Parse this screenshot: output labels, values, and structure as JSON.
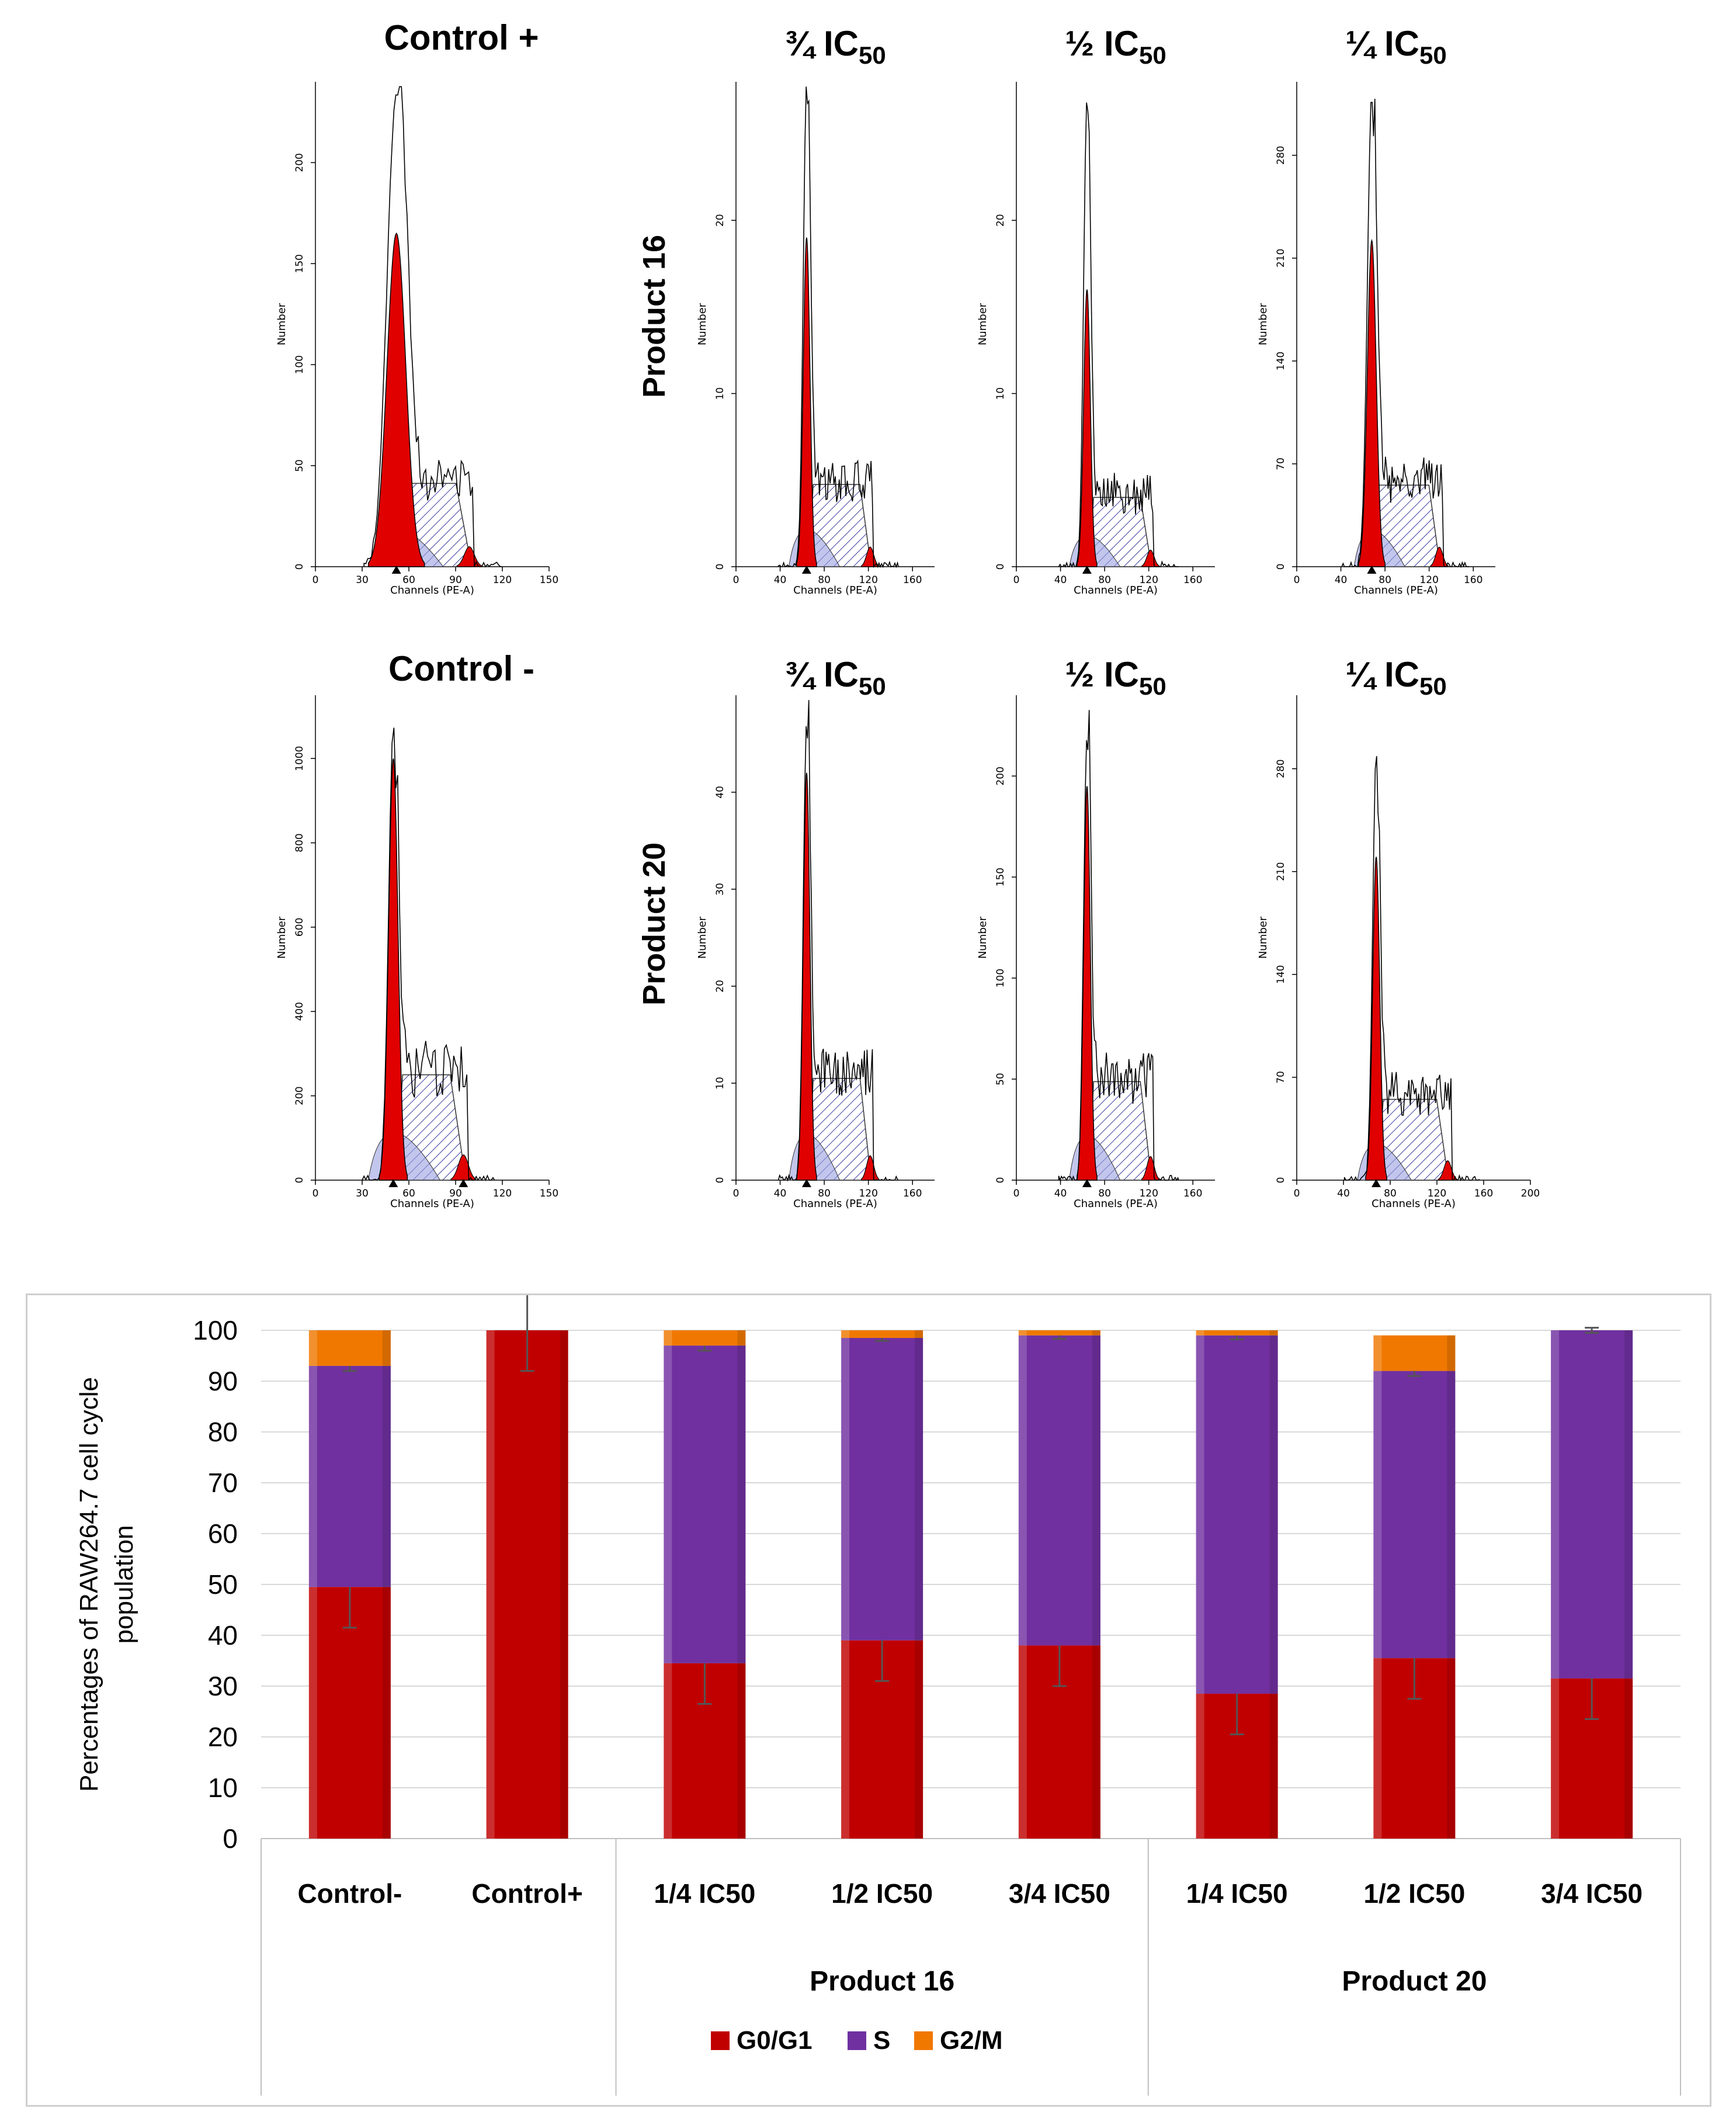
{
  "histograms": {
    "row1": {
      "control_title": "Control +",
      "titles": [
        "¾ IC",
        "½  IC",
        "¼  IC"
      ],
      "title_sub": "50",
      "product_label": "Product 16"
    },
    "row2": {
      "control_title": "Control -",
      "titles": [
        "¾ IC",
        "½  IC",
        "¼  IC"
      ],
      "title_sub": "50",
      "product_label": "Product 20"
    },
    "panels": [
      {
        "id": "c-plus",
        "yticks": [
          "0",
          "50",
          "100",
          "150",
          "200"
        ],
        "ymax": 240,
        "xticks": [
          "0",
          "30",
          "60",
          "90",
          "120",
          "150"
        ],
        "xmax": 150,
        "xlabel": "Channels (PE-A)",
        "ylabel": "Number",
        "g1": 52,
        "g1h": 165,
        "g1w": 6,
        "speak": 235,
        "markers": [
          52
        ]
      },
      {
        "id": "p16-34",
        "yticks": [
          "0",
          "10",
          "20"
        ],
        "ymax": 28,
        "xticks": [
          "0",
          "40",
          "80",
          "120",
          "160"
        ],
        "xmax": 180,
        "xlabel": "Channels (PE-A)",
        "ylabel": "Number",
        "g1": 64,
        "g1h": 19,
        "g1w": 3,
        "speak": 28,
        "markers": [
          64
        ]
      },
      {
        "id": "p16-12",
        "yticks": [
          "0",
          "10",
          "20"
        ],
        "ymax": 28,
        "xticks": [
          "0",
          "40",
          "80",
          "120",
          "160"
        ],
        "xmax": 180,
        "xlabel": "Channels (PE-A)",
        "ylabel": "Number",
        "g1": 64,
        "g1h": 16,
        "g1w": 3,
        "speak": 27,
        "markers": [
          64
        ]
      },
      {
        "id": "p16-14",
        "yticks": [
          "0",
          "70",
          "140",
          "210",
          "280"
        ],
        "ymax": 330,
        "xticks": [
          "0",
          "40",
          "80",
          "120",
          "160"
        ],
        "xmax": 180,
        "xlabel": "Channels (PE-A)",
        "ylabel": "Number",
        "g1": 68,
        "g1h": 222,
        "g1w": 4,
        "speak": 320,
        "markers": [
          68
        ]
      },
      {
        "id": "c-minus",
        "yticks": [
          "0",
          "200",
          "400",
          "600",
          "800",
          "1000"
        ],
        "ymax": 1150,
        "xticks": [
          "0",
          "30",
          "60",
          "90",
          "120",
          "150"
        ],
        "xmax": 150,
        "xlabel": "Channels (PE-A)",
        "ylabel": "Number",
        "g1": 50,
        "g1h": 1000,
        "g1w": 3,
        "speak": 1080,
        "markers": [
          50,
          95
        ]
      },
      {
        "id": "p20-34",
        "yticks": [
          "0",
          "10",
          "20",
          "30",
          "40"
        ],
        "ymax": 50,
        "xticks": [
          "0",
          "40",
          "80",
          "120",
          "160"
        ],
        "xmax": 180,
        "xlabel": "Channels (PE-A)",
        "ylabel": "Number",
        "g1": 64,
        "g1h": 42,
        "g1w": 3,
        "speak": 47,
        "markers": [
          64
        ]
      },
      {
        "id": "p20-12",
        "yticks": [
          "0",
          "50",
          "100",
          "150",
          "200"
        ],
        "ymax": 240,
        "xticks": [
          "0",
          "40",
          "80",
          "120",
          "160"
        ],
        "xmax": 180,
        "xlabel": "Channels (PE-A)",
        "ylabel": "Number",
        "g1": 64,
        "g1h": 195,
        "g1w": 3,
        "speak": 220,
        "markers": [
          64
        ]
      },
      {
        "id": "p20-14",
        "yticks": [
          "0",
          "70",
          "140",
          "210",
          "280"
        ],
        "ymax": 330,
        "xticks": [
          "0",
          "40",
          "80",
          "120",
          "160",
          "200"
        ],
        "xmax": 200,
        "xlabel": "Channels (PE-A)",
        "ylabel": "Number",
        "g1": 68,
        "g1h": 220,
        "g1w": 3,
        "speak": 290,
        "markers": [
          68
        ]
      }
    ]
  },
  "chart_data": {
    "type": "bar",
    "stacked": true,
    "title": "",
    "ylabel": "Percentages of RAW264.7 cell cycle population",
    "ylim": [
      0,
      100
    ],
    "yticks": [
      0,
      10,
      20,
      30,
      40,
      50,
      60,
      70,
      80,
      90,
      100
    ],
    "categories": [
      "Control-",
      "Control+",
      "1/4 IC50",
      "1/2 IC50",
      "3/4 IC50",
      "1/4 IC50",
      "1/2 IC50",
      "3/4 IC50"
    ],
    "groups": [
      {
        "label": "",
        "span": 2
      },
      {
        "label": "Product 16",
        "span": 3
      },
      {
        "label": "Product 20",
        "span": 3
      }
    ],
    "series": [
      {
        "name": "G0/G1",
        "color": "#c00000",
        "values": [
          49.5,
          100,
          34.5,
          39,
          38,
          28.5,
          35.5,
          31.5
        ],
        "errors": [
          8,
          8,
          8,
          8,
          8,
          8,
          8,
          8
        ]
      },
      {
        "name": "S",
        "color": "#7030a0",
        "values": [
          43.5,
          0,
          62.5,
          59.5,
          61,
          70.5,
          56.5,
          68.5
        ],
        "errors": [
          1,
          0,
          1,
          0.6,
          0.7,
          0.8,
          1,
          0.5
        ]
      },
      {
        "name": "G2/M",
        "color": "#f07800",
        "values": [
          7,
          0,
          3,
          1.5,
          1,
          1,
          7,
          0
        ],
        "errors": [
          0,
          0,
          0,
          0,
          0,
          0,
          0,
          0
        ]
      }
    ],
    "legend": [
      "G0/G1",
      "S",
      "G2/M"
    ],
    "legend_position": "bottom"
  }
}
